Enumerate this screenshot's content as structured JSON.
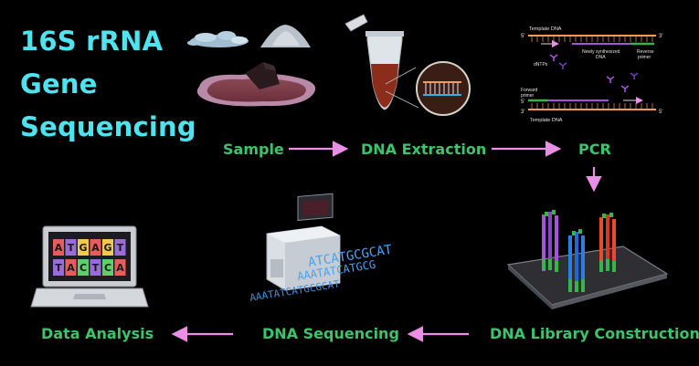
{
  "title": {
    "lines": [
      "16S rRNA",
      "Gene",
      "Sequencing"
    ]
  },
  "steps": [
    {
      "id": "sample",
      "label": "Sample"
    },
    {
      "id": "dna-extraction",
      "label": "DNA Extraction"
    },
    {
      "id": "pcr",
      "label": "PCR"
    },
    {
      "id": "dna-library-construction",
      "label": "DNA Library Construction"
    },
    {
      "id": "dna-sequencing",
      "label": "DNA Sequencing"
    },
    {
      "id": "data-analysis",
      "label": "Data Analysis"
    }
  ],
  "pcr_diagram": {
    "template_dna_top": "Template DNA",
    "newly_synthesized": "Newly synthesized",
    "dna": "DNA",
    "reverse": "Reverse",
    "primer": "primer",
    "dntps": "dNTPs",
    "forward": "Forward",
    "template_dna_bottom": "Template DNA",
    "five_prime": "5'",
    "three_prime": "3'"
  },
  "laptop_bases": {
    "top": [
      "A",
      "T",
      "G",
      "A",
      "G",
      "T"
    ],
    "bottom": [
      "T",
      "A",
      "C",
      "T",
      "C",
      "A"
    ]
  },
  "sequence_text": {
    "line1": "ATCATGCGCAT",
    "line2": "AAATATCATGCG",
    "line3": "AAATATCATGCGCAT"
  },
  "colors": {
    "title": "#4fe3ef",
    "step_label": "#3cc46c",
    "arrow": "#e98fe5",
    "strand_orange": "#f49a5a",
    "strand_purple": "#a553d8",
    "strand_green": "#38b54a",
    "strand_blue": "#2b7fe0",
    "strand_red": "#ea4a2a"
  }
}
